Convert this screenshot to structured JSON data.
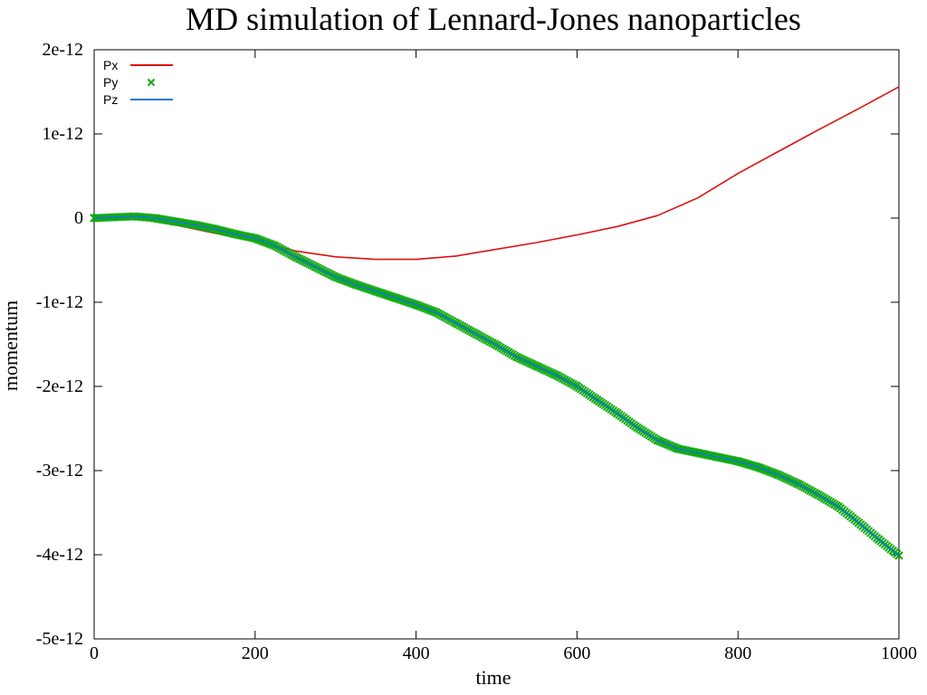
{
  "chart_data": {
    "type": "line",
    "title": "MD simulation of Lennard-Jones nanoparticles",
    "xlabel": "time",
    "ylabel": "momentum",
    "xlim": [
      0,
      1000
    ],
    "ylim": [
      -5e-12,
      2e-12
    ],
    "x_ticks": [
      0,
      200,
      400,
      600,
      800,
      1000
    ],
    "x_tick_labels": [
      "0",
      "200",
      "400",
      "600",
      "800",
      "1000"
    ],
    "y_ticks": [
      2e-12,
      1e-12,
      0,
      -1e-12,
      -2e-12,
      -3e-12,
      -4e-12,
      -5e-12
    ],
    "y_tick_labels": [
      "2e-12",
      "1e-12",
      "0",
      "-1e-12",
      "-2e-12",
      "-3e-12",
      "-4e-12",
      "-5e-12"
    ],
    "grid": false,
    "legend": "top-left",
    "series": [
      {
        "name": "Px",
        "style": "line",
        "color": "#dd1111",
        "x": [
          0,
          50,
          100,
          150,
          200,
          250,
          300,
          350,
          400,
          450,
          500,
          550,
          600,
          650,
          700,
          750,
          800,
          850,
          900,
          950,
          1000
        ],
        "y": [
          0,
          0,
          -8e-14,
          -1.8e-13,
          -2.7e-13,
          -3.9e-13,
          -4.6e-13,
          -4.9e-13,
          -4.9e-13,
          -4.5e-13,
          -3.7e-13,
          -2.9e-13,
          -2e-13,
          -1e-13,
          3e-14,
          2.4e-13,
          5.3e-13,
          7.9e-13,
          1.05e-12,
          1.3e-12,
          1.56e-12
        ]
      },
      {
        "name": "Py",
        "style": "points",
        "color": "#11aa11",
        "x": [
          0,
          25,
          50,
          75,
          100,
          125,
          150,
          175,
          200,
          225,
          250,
          275,
          300,
          325,
          350,
          375,
          400,
          425,
          450,
          475,
          500,
          525,
          550,
          575,
          600,
          625,
          650,
          675,
          700,
          725,
          750,
          775,
          800,
          825,
          850,
          875,
          900,
          925,
          950,
          975,
          1000
        ],
        "y": [
          0,
          1e-14,
          2e-14,
          0,
          -4e-14,
          -8e-14,
          -1.3e-13,
          -1.9e-13,
          -2.4e-13,
          -3.3e-13,
          -4.6e-13,
          -5.8e-13,
          -7e-13,
          -7.9e-13,
          -8.7e-13,
          -9.5e-13,
          -1.03e-12,
          -1.12e-12,
          -1.25e-12,
          -1.38e-12,
          -1.51e-12,
          -1.65e-12,
          -1.76e-12,
          -1.87e-12,
          -2e-12,
          -2.16e-12,
          -2.32e-12,
          -2.49e-12,
          -2.64e-12,
          -2.74e-12,
          -2.79e-12,
          -2.84e-12,
          -2.89e-12,
          -2.96e-12,
          -3.05e-12,
          -3.16e-12,
          -3.29e-12,
          -3.43e-12,
          -3.62e-12,
          -3.82e-12,
          -4.01e-12
        ]
      },
      {
        "name": "Pz",
        "style": "line",
        "color": "#1177dd",
        "x": [
          0,
          25,
          50,
          75,
          100,
          125,
          150,
          175,
          200,
          225,
          250,
          275,
          300,
          325,
          350,
          375,
          400,
          425,
          450,
          475,
          500,
          525,
          550,
          575,
          600,
          625,
          650,
          675,
          700,
          725,
          750,
          775,
          800,
          825,
          850,
          875,
          900,
          925,
          950,
          975,
          1000
        ],
        "y": [
          0,
          1e-14,
          2e-14,
          0,
          -4e-14,
          -8e-14,
          -1.3e-13,
          -1.9e-13,
          -2.4e-13,
          -3.3e-13,
          -4.6e-13,
          -5.8e-13,
          -7e-13,
          -7.9e-13,
          -8.7e-13,
          -9.5e-13,
          -1.03e-12,
          -1.12e-12,
          -1.25e-12,
          -1.38e-12,
          -1.51e-12,
          -1.65e-12,
          -1.76e-12,
          -1.87e-12,
          -2e-12,
          -2.16e-12,
          -2.32e-12,
          -2.49e-12,
          -2.64e-12,
          -2.74e-12,
          -2.79e-12,
          -2.84e-12,
          -2.89e-12,
          -2.96e-12,
          -3.05e-12,
          -3.16e-12,
          -3.29e-12,
          -3.43e-12,
          -3.62e-12,
          -3.82e-12,
          -4.01e-12
        ]
      }
    ]
  }
}
